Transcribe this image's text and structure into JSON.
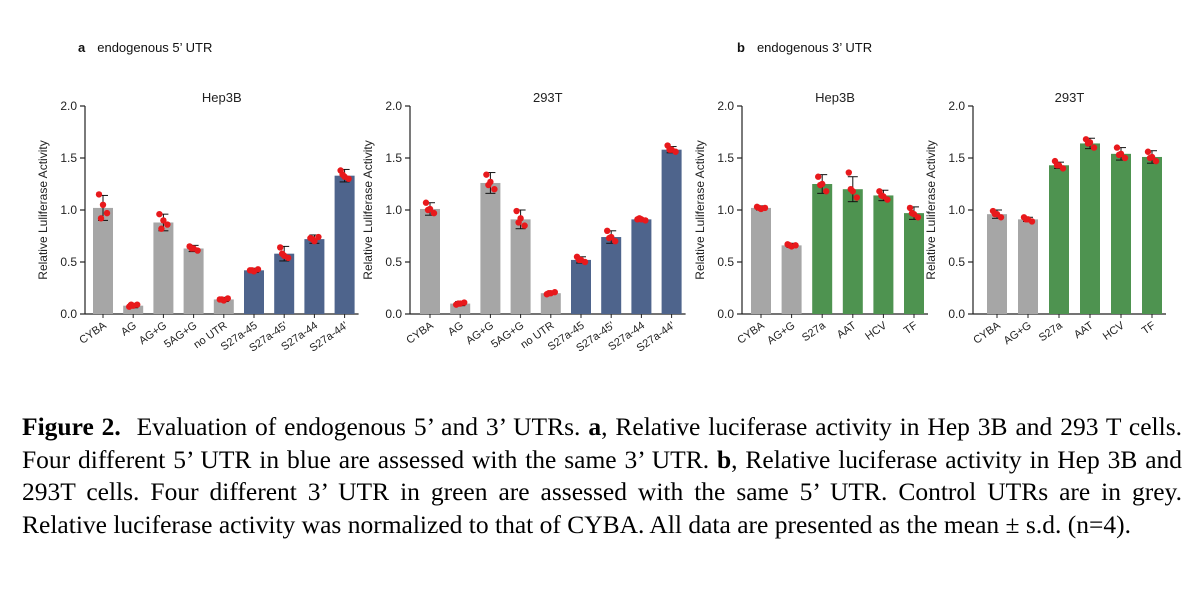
{
  "panels": {
    "a": {
      "letter": "a",
      "label": "endogenous 5’ UTR"
    },
    "b": {
      "letter": "b",
      "label": "endogenous 3’ UTR"
    }
  },
  "colors": {
    "control": "#a6a6a6",
    "utr5": "#4e648c",
    "utr3": "#4e9350",
    "point": "#e8191c",
    "axis": "#222222"
  },
  "chart_data": [
    {
      "type": "bar",
      "panel": "a",
      "title": "Hep3B",
      "ylabel": "Relative Luliferase Activity",
      "ylim": [
        0,
        2.0
      ],
      "yticks": [
        "0.0",
        "0.5",
        "1.0",
        "1.5",
        "2.0"
      ],
      "categories": [
        "CYBA",
        "AG",
        "AG+G",
        "5AG+G",
        "no UTR",
        "S27a-45",
        "S27a-45'",
        "S27a-44",
        "S27a-44'"
      ],
      "values": [
        1.02,
        0.08,
        0.88,
        0.63,
        0.14,
        0.42,
        0.58,
        0.72,
        1.33
      ],
      "errors": [
        0.12,
        0.02,
        0.08,
        0.03,
        0.02,
        0.02,
        0.07,
        0.04,
        0.06
      ],
      "groups": [
        "control",
        "control",
        "control",
        "control",
        "control",
        "utr5",
        "utr5",
        "utr5",
        "utr5"
      ],
      "points": [
        [
          1.15,
          1.05,
          0.97,
          0.92
        ],
        [
          0.07,
          0.08,
          0.09,
          0.09
        ],
        [
          0.96,
          0.9,
          0.86,
          0.82
        ],
        [
          0.65,
          0.63,
          0.61,
          0.63
        ],
        [
          0.14,
          0.13,
          0.15,
          0.14
        ],
        [
          0.42,
          0.41,
          0.43,
          0.42
        ],
        [
          0.64,
          0.56,
          0.54,
          0.58
        ],
        [
          0.73,
          0.7,
          0.74,
          0.72
        ],
        [
          1.38,
          1.32,
          1.3,
          1.34
        ]
      ]
    },
    {
      "type": "bar",
      "panel": "a",
      "title": "293T",
      "ylabel": "Relative Luliferase Activity",
      "ylim": [
        0,
        2.0
      ],
      "yticks": [
        "0.0",
        "0.5",
        "1.0",
        "1.5",
        "2.0"
      ],
      "categories": [
        "CYBA",
        "AG",
        "AG+G",
        "5AG+G",
        "no UTR",
        "S27a-45",
        "S27a-45'",
        "S27a-44",
        "S27a-44'"
      ],
      "values": [
        1.01,
        0.1,
        1.26,
        0.91,
        0.2,
        0.52,
        0.74,
        0.91,
        1.58
      ],
      "errors": [
        0.06,
        0.02,
        0.1,
        0.09,
        0.01,
        0.03,
        0.06,
        0.01,
        0.03
      ],
      "groups": [
        "control",
        "control",
        "control",
        "control",
        "control",
        "utr5",
        "utr5",
        "utr5",
        "utr5"
      ],
      "points": [
        [
          1.07,
          1.01,
          0.97,
          1.0
        ],
        [
          0.09,
          0.1,
          0.11,
          0.1
        ],
        [
          1.34,
          1.27,
          1.2,
          1.24
        ],
        [
          0.99,
          0.92,
          0.85,
          0.88
        ],
        [
          0.19,
          0.2,
          0.21,
          0.2
        ],
        [
          0.55,
          0.52,
          0.5,
          0.52
        ],
        [
          0.8,
          0.74,
          0.7,
          0.73
        ],
        [
          0.91,
          0.91,
          0.9,
          0.92
        ],
        [
          1.62,
          1.58,
          1.56,
          1.58
        ]
      ]
    },
    {
      "type": "bar",
      "panel": "b",
      "title": "Hep3B",
      "ylabel": "Relative Luliferase Activity",
      "ylim": [
        0,
        2.0
      ],
      "yticks": [
        "0.0",
        "0.5",
        "1.0",
        "1.5",
        "2.0"
      ],
      "categories": [
        "CYBA",
        "AG+G",
        "S27a",
        "AAT",
        "HCV",
        "TF"
      ],
      "values": [
        1.02,
        0.66,
        1.25,
        1.2,
        1.14,
        0.97
      ],
      "errors": [
        0.02,
        0.02,
        0.09,
        0.12,
        0.05,
        0.06
      ],
      "groups": [
        "control",
        "control",
        "utr3",
        "utr3",
        "utr3",
        "utr3"
      ],
      "points": [
        [
          1.03,
          1.01,
          1.02,
          1.02
        ],
        [
          0.67,
          0.65,
          0.66,
          0.66
        ],
        [
          1.32,
          1.25,
          1.18,
          1.24
        ],
        [
          1.36,
          1.18,
          1.12,
          1.2
        ],
        [
          1.18,
          1.13,
          1.1,
          1.14
        ],
        [
          1.02,
          0.96,
          0.93,
          0.97
        ]
      ]
    },
    {
      "type": "bar",
      "panel": "b",
      "title": "293T",
      "ylabel": "Relative Luliferase Activity",
      "ylim": [
        0,
        2.0
      ],
      "yticks": [
        "0.0",
        "0.5",
        "1.0",
        "1.5",
        "2.0"
      ],
      "categories": [
        "CYBA",
        "AG+G",
        "S27a",
        "AAT",
        "HCV",
        "TF"
      ],
      "values": [
        0.96,
        0.91,
        1.43,
        1.64,
        1.54,
        1.51
      ],
      "errors": [
        0.04,
        0.02,
        0.03,
        0.05,
        0.06,
        0.06
      ],
      "groups": [
        "control",
        "control",
        "utr3",
        "utr3",
        "utr3",
        "utr3"
      ],
      "points": [
        [
          0.99,
          0.96,
          0.93,
          0.96
        ],
        [
          0.93,
          0.91,
          0.89,
          0.91
        ],
        [
          1.47,
          1.43,
          1.4,
          1.43
        ],
        [
          1.68,
          1.65,
          1.6,
          1.64
        ],
        [
          1.6,
          1.54,
          1.5,
          1.53
        ],
        [
          1.56,
          1.51,
          1.47,
          1.5
        ]
      ]
    }
  ],
  "caption": {
    "bold_title": "Figure 2.",
    "intro": "Evaluation of endogenous 5’ and 3’ UTRs.",
    "a_letter": "a",
    "a_text": ", Relative luciferase activity in Hep 3B and 293 T cells. Four different 5’ UTR in blue are assessed with the same 3’ UTR.",
    "b_letter": "b",
    "b_text": ", Relative luciferase activity in Hep 3B and 293T cells. Four different 3’ UTR in green are assessed with the same 5’ UTR. Control UTRs are in grey. Relative luciferase activity was normalized to that of CYBA. All data are presented as the mean ± s.d. (n=4)."
  }
}
